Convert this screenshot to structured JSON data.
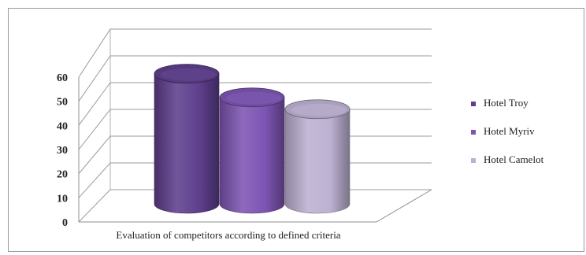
{
  "chart_data": {
    "type": "bar",
    "style": "3d-cylinder",
    "categories": [
      "Evaluation of competitors according to defined criteria"
    ],
    "series": [
      {
        "name": "Hotel Troy",
        "values": [
          55
        ],
        "color": "#5e3f8d"
      },
      {
        "name": "Hotel Myriv",
        "values": [
          45
        ],
        "color": "#7d55b3"
      },
      {
        "name": "Hotel Camelot",
        "values": [
          40
        ],
        "color": "#bdb1d2"
      }
    ],
    "ylim": [
      0,
      60
    ],
    "yticks": [
      "0",
      "10",
      "20",
      "30",
      "40",
      "50",
      "60"
    ],
    "grid": true,
    "legend_position": "right"
  }
}
